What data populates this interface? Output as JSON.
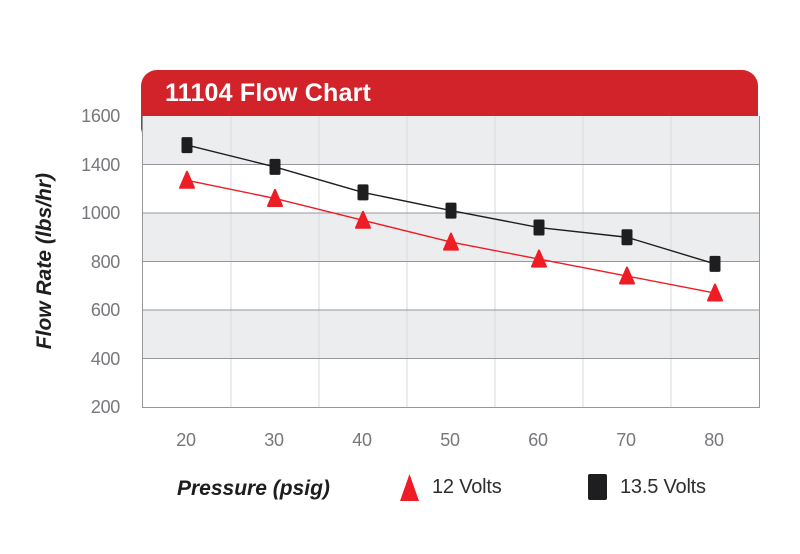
{
  "chart": {
    "title": "11104 Flow Chart",
    "y_axis_title": "Flow Rate (lbs/hr)",
    "x_axis_title": "Pressure (psig)",
    "colors": {
      "banner_red": "#d2232a",
      "series_red": "#ee1c25",
      "series_black": "#1e1e20",
      "band_gray": "#ebedef",
      "band_white": "#ffffff",
      "grid_horizontal": "#95979a",
      "grid_vertical": "#d9dadc",
      "tick_text": "#77787b",
      "title_text": "#ffffff"
    },
    "legend": [
      {
        "label": "12 Volts",
        "marker": "triangle",
        "color": "#ee1c25"
      },
      {
        "label": "13.5 Volts",
        "marker": "square",
        "color": "#1e1e20"
      }
    ]
  },
  "chart_data": {
    "type": "line",
    "title": "11104 Flow Chart",
    "xlabel": "Pressure (psig)",
    "ylabel": "Flow Rate (lbs/hr)",
    "x": [
      20,
      30,
      40,
      50,
      60,
      70,
      80
    ],
    "x_tick_labels": [
      "20",
      "30",
      "40",
      "50",
      "60",
      "70",
      "80"
    ],
    "y_tick_labels": [
      "1600",
      "1400",
      "1000",
      "800",
      "600",
      "400",
      "200"
    ],
    "y_axis_layout_note": "7 evenly spaced gridlines; labels as printed (no 1200 label, so the 1400-to-1000 band spans 400 units); alternating gray/white bands starting gray at top",
    "grid": true,
    "legend_position": "bottom",
    "series": [
      {
        "name": "12 Volts",
        "marker": "triangle",
        "color": "#ee1c25",
        "values": [
          1270,
          1120,
          970,
          880,
          810,
          740,
          670
        ]
      },
      {
        "name": "13.5 Volts",
        "marker": "square",
        "color": "#1e1e20",
        "values": [
          1480,
          1380,
          1170,
          1020,
          940,
          900,
          790
        ]
      }
    ]
  }
}
